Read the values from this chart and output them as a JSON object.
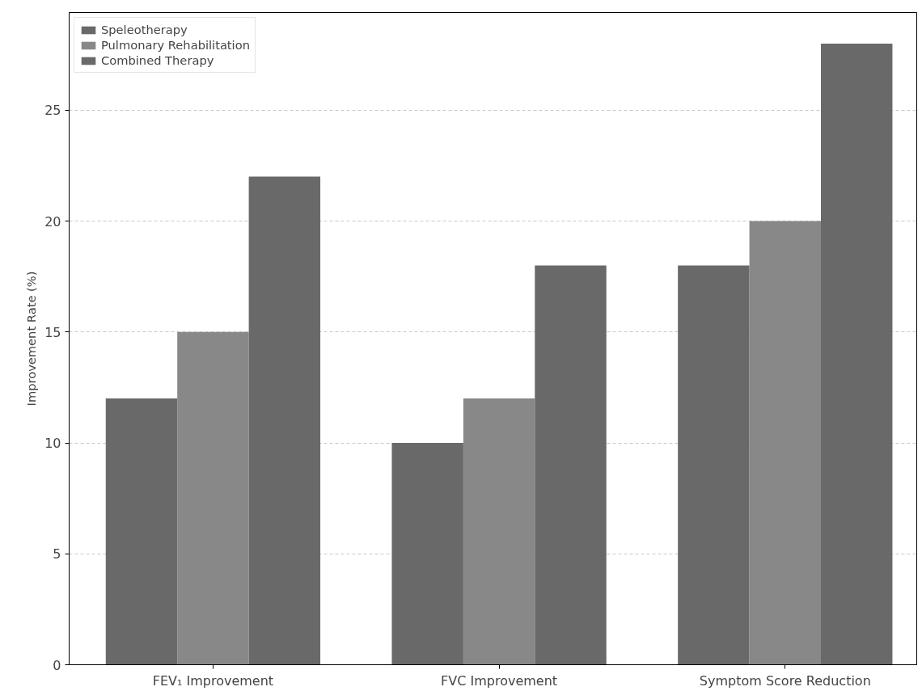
{
  "chart_data": {
    "type": "bar",
    "ylabel": "Improvement Rate (%)",
    "categories": [
      "FEV₁ Improvement",
      "FVC Improvement",
      "Symptom Score Reduction"
    ],
    "series": [
      {
        "name": "Speleotherapy",
        "color": "#696969",
        "values": [
          12,
          10,
          18
        ]
      },
      {
        "name": "Pulmonary Rehabilitation",
        "color": "#888888",
        "values": [
          15,
          12,
          20
        ]
      },
      {
        "name": "Combined Therapy",
        "color": "#696969",
        "values": [
          22,
          18,
          28
        ]
      }
    ],
    "ylim": [
      0,
      29.4
    ],
    "yticks": [
      0,
      5,
      10,
      15,
      20,
      25
    ],
    "grid": "y",
    "legend": "top left"
  }
}
